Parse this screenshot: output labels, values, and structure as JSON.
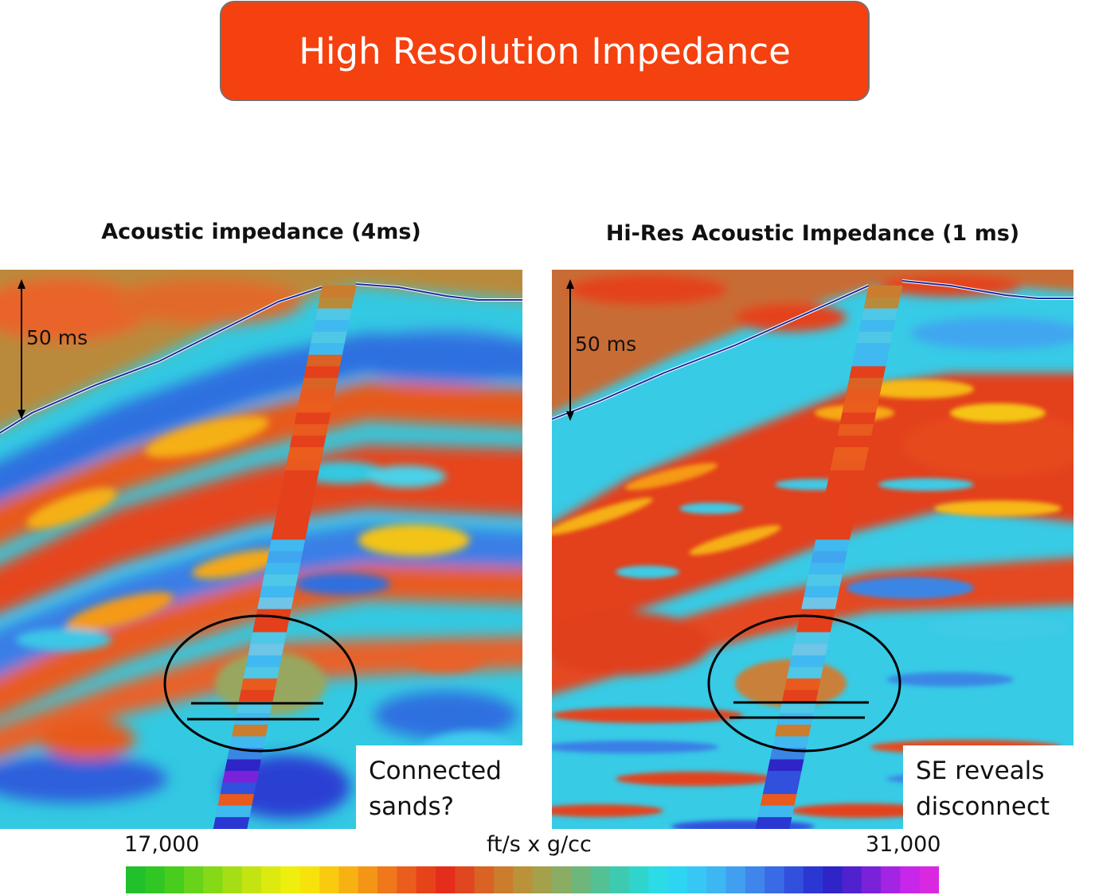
{
  "title": "High Resolution Impedance",
  "panels": [
    {
      "title": "Acoustic impedance (4ms)",
      "scale_label": "50 ms",
      "callout": [
        "Connected",
        "sands?"
      ]
    },
    {
      "title": "Hi-Res Acoustic Impedance (1 ms)",
      "scale_label": "50 ms",
      "callout": [
        "SE reveals",
        "disconnect"
      ]
    }
  ],
  "colorbar": {
    "min_label": "17,000",
    "max_label": "31,000",
    "unit": "ft/s x g/cc",
    "colors": [
      "#21c12b",
      "#30c623",
      "#48cc1d",
      "#67d31a",
      "#86d916",
      "#a6de16",
      "#c4e412",
      "#dcea10",
      "#eeef0e",
      "#f7e30b",
      "#f9cb0f",
      "#f8b113",
      "#f49516",
      "#ef781a",
      "#ea5d1d",
      "#e74319",
      "#e52d1b",
      "#e0461f",
      "#d96224",
      "#cc7c2d",
      "#ba923a",
      "#a5a04c",
      "#8aac63",
      "#6eb67a",
      "#53c193",
      "#3ccbb0",
      "#2fd5cd",
      "#2bdbe6",
      "#2dd5f3",
      "#36c7f4",
      "#3db6f2",
      "#419ff0",
      "#3f86ec",
      "#3a6be6",
      "#3150dd",
      "#2b37d2",
      "#2e24c7",
      "#5021cf",
      "#7a22d9",
      "#a424e3",
      "#c727ea",
      "#d829e0"
    ]
  }
}
